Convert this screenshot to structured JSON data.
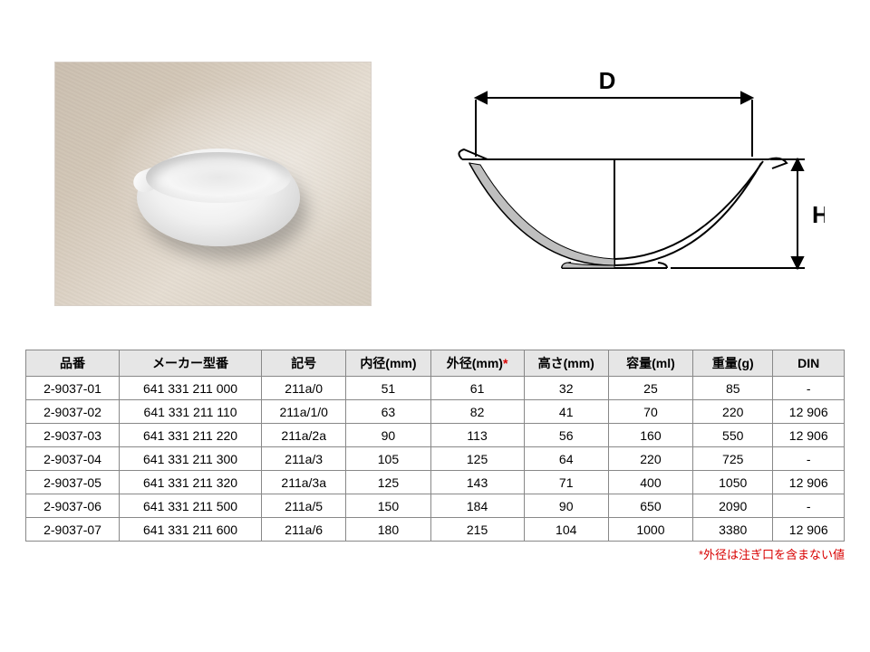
{
  "diagram": {
    "label_D": "D",
    "label_H": "H",
    "stroke": "#000000",
    "fill_shadow": "#bfbfbf",
    "stroke_width": 2
  },
  "table": {
    "columns": [
      {
        "key": "品番",
        "label": "品番",
        "width": "10.5%"
      },
      {
        "key": "メーカー型番",
        "label": "メーカー型番",
        "width": "16%"
      },
      {
        "key": "記号",
        "label": "記号",
        "width": "9.5%"
      },
      {
        "key": "内径",
        "label": "内径(mm)",
        "width": "9.5%"
      },
      {
        "key": "外径",
        "label": "外径(mm)",
        "width": "10.5%",
        "star": true
      },
      {
        "key": "高さ",
        "label": "高さ(mm)",
        "width": "9.5%"
      },
      {
        "key": "容量",
        "label": "容量(ml)",
        "width": "9.5%"
      },
      {
        "key": "重量",
        "label": "重量(g)",
        "width": "9%"
      },
      {
        "key": "DIN",
        "label": "DIN",
        "width": "8%"
      }
    ],
    "rows": [
      [
        "2-9037-01",
        "641 331 211 000",
        "211a/0",
        "51",
        "61",
        "32",
        "25",
        "85",
        "-"
      ],
      [
        "2-9037-02",
        "641 331 211 110",
        "211a/1/0",
        "63",
        "82",
        "41",
        "70",
        "220",
        "12 906"
      ],
      [
        "2-9037-03",
        "641 331 211 220",
        "211a/2a",
        "90",
        "113",
        "56",
        "160",
        "550",
        "12 906"
      ],
      [
        "2-9037-04",
        "641 331 211 300",
        "211a/3",
        "105",
        "125",
        "64",
        "220",
        "725",
        "-"
      ],
      [
        "2-9037-05",
        "641 331 211 320",
        "211a/3a",
        "125",
        "143",
        "71",
        "400",
        "1050",
        "12 906"
      ],
      [
        "2-9037-06",
        "641 331 211 500",
        "211a/5",
        "150",
        "184",
        "90",
        "650",
        "2090",
        "-"
      ],
      [
        "2-9037-07",
        "641 331 211 600",
        "211a/6",
        "180",
        "215",
        "104",
        "1000",
        "3380",
        "12 906"
      ]
    ],
    "header_bg": "#e6e6e6",
    "border_color": "#888888",
    "font_size": 14
  },
  "footnote": {
    "text": "*外径は注ぎ口を含まない値",
    "color": "#d80000"
  }
}
